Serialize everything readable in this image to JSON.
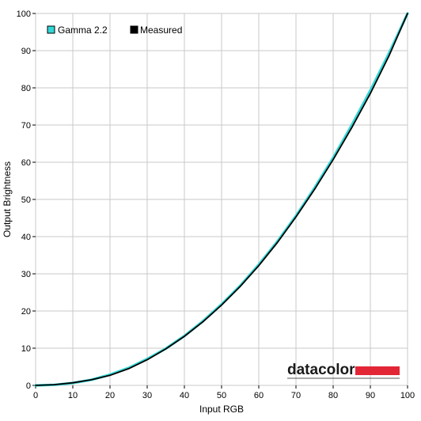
{
  "chart_data": {
    "type": "line",
    "xlabel": "Input RGB",
    "ylabel": "Output Brightness",
    "xlim": [
      0,
      100
    ],
    "ylim": [
      0,
      100
    ],
    "x_ticks": [
      0,
      10,
      20,
      30,
      40,
      50,
      60,
      70,
      80,
      90,
      100
    ],
    "y_ticks": [
      0,
      10,
      20,
      30,
      40,
      50,
      60,
      70,
      80,
      90,
      100
    ],
    "grid": true,
    "legend_position": "top-left",
    "series": [
      {
        "name": "Gamma 2.2",
        "color": "#33d6d6",
        "x": [
          0,
          5,
          10,
          15,
          20,
          25,
          30,
          35,
          40,
          45,
          50,
          55,
          60,
          65,
          70,
          75,
          80,
          85,
          90,
          95,
          100
        ],
        "values": [
          0,
          0.14,
          0.63,
          1.5,
          2.9,
          4.7,
          7.1,
          9.9,
          13.3,
          17.3,
          21.8,
          26.8,
          32.5,
          38.7,
          45.6,
          53.1,
          61.2,
          70.0,
          79.3,
          89.3,
          100
        ]
      },
      {
        "name": "Measured",
        "color": "#000000",
        "x": [
          0,
          5,
          10,
          15,
          20,
          25,
          30,
          35,
          40,
          45,
          50,
          55,
          60,
          65,
          70,
          75,
          80,
          85,
          90,
          95,
          100
        ],
        "values": [
          0,
          0.2,
          0.7,
          1.5,
          2.7,
          4.5,
          6.9,
          9.8,
          13.2,
          17.1,
          21.6,
          26.6,
          32.2,
          38.4,
          45.3,
          52.7,
          60.7,
          69.3,
          78.5,
          88.6,
          100
        ]
      }
    ]
  },
  "branding": {
    "logo_text": "datacolor",
    "logo_bar_color": "#e32636"
  }
}
